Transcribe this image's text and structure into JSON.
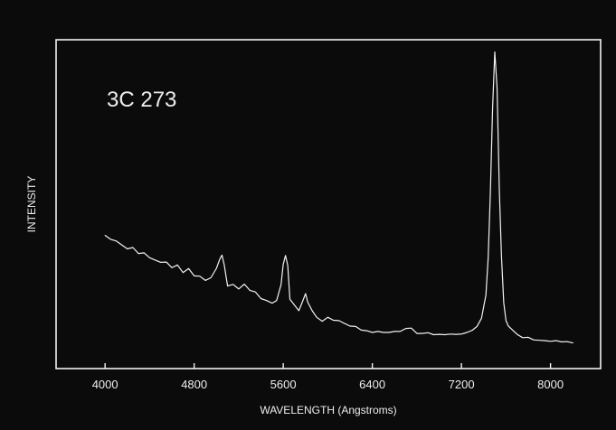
{
  "chart_data": {
    "type": "line",
    "title": "",
    "xlabel": "WAVELENGTH (Angstroms)",
    "ylabel": "INTENSITY",
    "annotation": "3C 273",
    "xlim": [
      3560,
      8450
    ],
    "ylim": [
      0,
      100
    ],
    "xticks": [
      4000,
      4800,
      5600,
      6400,
      7200,
      8000
    ],
    "yticks": [],
    "grid": false,
    "legend": "none",
    "colors": {
      "background": "#0b0b0b",
      "frame": "#f2f2f2",
      "line": "#f2f2f2",
      "text": "#eeeeee"
    },
    "series": [
      {
        "x": [
          4000,
          4050,
          4100,
          4150,
          4200,
          4250,
          4300,
          4350,
          4400,
          4450,
          4500,
          4550,
          4600,
          4650,
          4700,
          4750,
          4800,
          4850,
          4900,
          4950,
          5000,
          5030,
          5050,
          5070,
          5100,
          5150,
          5200,
          5250,
          5300,
          5350,
          5400,
          5450,
          5500,
          5540,
          5580,
          5600,
          5620,
          5640,
          5660,
          5700,
          5740,
          5780,
          5800,
          5820,
          5860,
          5900,
          5950,
          6000,
          6050,
          6100,
          6150,
          6200,
          6250,
          6300,
          6350,
          6400,
          6450,
          6500,
          6550,
          6600,
          6650,
          6700,
          6750,
          6800,
          6850,
          6900,
          6950,
          7000,
          7050,
          7100,
          7150,
          7200,
          7250,
          7300,
          7340,
          7380,
          7420,
          7440,
          7460,
          7480,
          7500,
          7520,
          7540,
          7560,
          7580,
          7600,
          7620,
          7660,
          7700,
          7750,
          7800,
          7850,
          7900,
          7950,
          8000,
          8050,
          8100,
          8150,
          8200
        ],
        "y": [
          40.5,
          39.3,
          38.8,
          37.6,
          36.4,
          36.8,
          35.0,
          35.2,
          33.7,
          33.0,
          32.3,
          32.4,
          30.7,
          31.5,
          29.2,
          30.4,
          28.2,
          28.1,
          26.8,
          27.6,
          30.5,
          33.3,
          34.5,
          31.5,
          25.1,
          25.6,
          24.2,
          25.7,
          23.8,
          23.3,
          21.3,
          20.7,
          19.9,
          20.7,
          25.5,
          31.7,
          34.4,
          31.4,
          21.1,
          19.3,
          17.6,
          21.0,
          22.8,
          20.2,
          17.6,
          15.6,
          14.4,
          15.6,
          14.7,
          14.6,
          13.7,
          12.9,
          12.8,
          11.7,
          11.5,
          11.0,
          11.3,
          11.0,
          11.0,
          11.3,
          11.3,
          12.2,
          12.3,
          10.7,
          10.7,
          10.9,
          10.3,
          10.4,
          10.3,
          10.5,
          10.4,
          10.5,
          11.0,
          11.7,
          12.8,
          15.3,
          22.4,
          33.7,
          53.4,
          79.5,
          96.3,
          85.5,
          54.4,
          34.0,
          20.0,
          14.6,
          13.0,
          11.7,
          10.4,
          9.4,
          9.5,
          8.7,
          8.6,
          8.5,
          8.3,
          8.5,
          8.1,
          8.2,
          7.8
        ]
      }
    ]
  }
}
